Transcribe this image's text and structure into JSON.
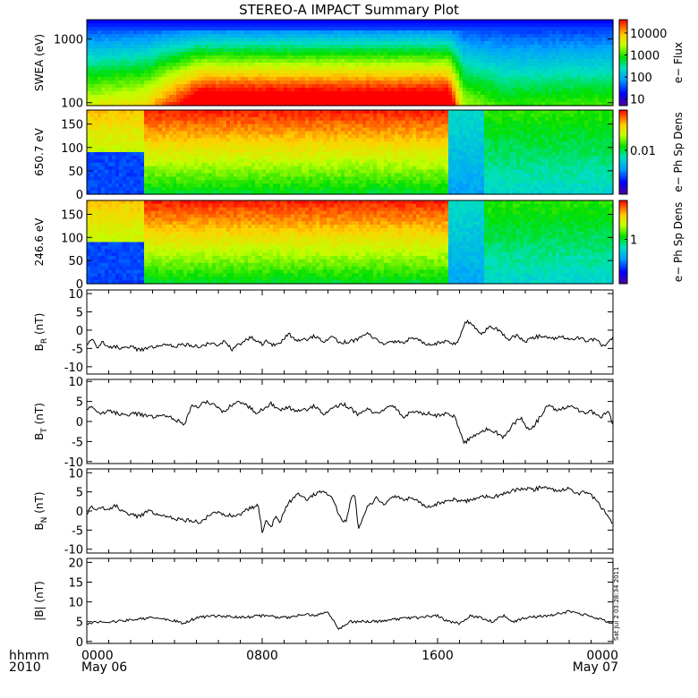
{
  "title": "STEREO-A IMPACT Summary Plot",
  "footer": {
    "time_format": "hhmm",
    "year": "2010"
  },
  "stamp": "Sat Jul  2 03:28:34 2011",
  "x_axis": {
    "tick_labels": [
      "0000",
      "0800",
      "1600",
      "0000"
    ],
    "date_labels": [
      "May 06",
      "",
      "",
      "May 07"
    ],
    "hours": [
      0,
      8,
      16,
      24
    ]
  },
  "chart_data": [
    {
      "type": "heatmap",
      "id": "swea",
      "ylabel": "SWEA (eV)",
      "y_scale": "log",
      "ylim": [
        90,
        2000
      ],
      "yticks": [
        100,
        1000
      ],
      "ytick_labels": [
        "100",
        "1000"
      ],
      "colorbar": {
        "label": "e− Flux",
        "scale": "log",
        "range": [
          5,
          40000
        ],
        "ticks": [
          10,
          100,
          1000,
          10000
        ],
        "tick_labels": [
          "10",
          "100",
          "1000",
          "10000"
        ]
      },
      "time_profile_hours": [
        0,
        2.6,
        5.2,
        16.5,
        17.2,
        19,
        24
      ],
      "time_profile_level": [
        0.55,
        0.6,
        0.95,
        0.95,
        0.5,
        0.4,
        0.42
      ]
    },
    {
      "type": "heatmap",
      "id": "pad650",
      "ylabel": "650.7 eV",
      "ylim": [
        0,
        180
      ],
      "yticks": [
        0,
        50,
        100,
        150
      ],
      "ytick_labels": [
        "0",
        "50",
        "100",
        "150"
      ],
      "colorbar": {
        "label": "e− Ph Sp Dens",
        "scale": "log",
        "tick_labels": [
          "0.01"
        ]
      },
      "regions": [
        {
          "hours": [
            0,
            2.6
          ],
          "state": "low_pitch_depleted"
        },
        {
          "hours": [
            2.6,
            16.5
          ],
          "state": "high_pitch_enhanced"
        },
        {
          "hours": [
            16.5,
            18.2
          ],
          "state": "depleted"
        },
        {
          "hours": [
            18.2,
            24
          ],
          "state": "mixed"
        }
      ]
    },
    {
      "type": "heatmap",
      "id": "pad246",
      "ylabel": "246.6 eV",
      "ylim": [
        0,
        180
      ],
      "yticks": [
        0,
        50,
        100,
        150
      ],
      "ytick_labels": [
        "0",
        "50",
        "100",
        "150"
      ],
      "colorbar": {
        "label": "e− Ph Sp Dens",
        "scale": "log",
        "tick_labels": [
          "1"
        ]
      },
      "regions": [
        {
          "hours": [
            0,
            2.6
          ],
          "state": "low_pitch_depleted"
        },
        {
          "hours": [
            2.6,
            16.5
          ],
          "state": "high_pitch_enhanced"
        },
        {
          "hours": [
            16.5,
            18.2
          ],
          "state": "depleted"
        },
        {
          "hours": [
            18.2,
            24
          ],
          "state": "mixed"
        }
      ]
    },
    {
      "type": "line",
      "id": "br",
      "ylabel_main": "B",
      "ylabel_sub": "R",
      "ylabel_unit": " (nT)",
      "ylim": [
        -12,
        11
      ],
      "yticks": [
        -10,
        -5,
        0,
        5,
        10
      ],
      "ytick_labels": [
        "-10",
        "-5",
        "0",
        "5",
        "10"
      ],
      "x": [
        0,
        0.3,
        0.5,
        0.7,
        1,
        1.3,
        1.6,
        2,
        2.4,
        2.8,
        3.2,
        3.6,
        4,
        4.4,
        4.8,
        5.2,
        5.6,
        5.8,
        6,
        6.3,
        6.6,
        6.9,
        7.2,
        7.5,
        7.8,
        8,
        8.2,
        8.4,
        8.8,
        9.2,
        9.6,
        10,
        10.4,
        10.8,
        11.2,
        11.6,
        12,
        12.4,
        12.8,
        13.2,
        13.6,
        14,
        14.4,
        14.8,
        15.2,
        15.6,
        16,
        16.4,
        16.8,
        17,
        17.3,
        17.6,
        18,
        18.4,
        18.8,
        19.2,
        19.6,
        20,
        20.4,
        20.8,
        21.2,
        21.6,
        22,
        22.4,
        22.8,
        23.2,
        23.6,
        24
      ],
      "values": [
        -4,
        -2.5,
        -5,
        -3,
        -5,
        -4.5,
        -5,
        -4.5,
        -5.5,
        -5,
        -4.5,
        -4,
        -4.5,
        -4,
        -4.2,
        -4.5,
        -3.5,
        -4,
        -4.5,
        -2.5,
        -5.5,
        -4,
        -3,
        -2,
        -3,
        -4,
        -2.5,
        -4,
        -3.5,
        -1,
        -3,
        -2.5,
        -1.5,
        -3,
        -2,
        -3.5,
        -3,
        -2.5,
        -1,
        -2.5,
        -4,
        -3,
        -3.5,
        -2,
        -3,
        -4,
        -3.5,
        -3,
        -4,
        -2,
        2.5,
        1.5,
        -1,
        1,
        0,
        -2.5,
        -1.5,
        -3,
        -2,
        -1.5,
        -2.5,
        -1.5,
        -2.5,
        -2,
        -3,
        -2.5,
        -4.5,
        -2
      ],
      "color": "#000000"
    },
    {
      "type": "line",
      "id": "bt",
      "ylabel_main": "B",
      "ylabel_sub": "T",
      "ylabel_unit": " (nT)",
      "ylim": [
        -10.5,
        10.5
      ],
      "yticks": [
        -10,
        -5,
        0,
        5,
        10
      ],
      "ytick_labels": [
        "-10",
        "-5",
        "0",
        "5",
        "10"
      ],
      "x": [
        0,
        0.3,
        0.6,
        1,
        1.4,
        1.8,
        2.2,
        2.6,
        3,
        3.4,
        3.8,
        4.2,
        4.4,
        4.6,
        4.8,
        5,
        5.4,
        5.8,
        6.2,
        6.6,
        7,
        7.4,
        7.8,
        8,
        8.4,
        8.8,
        9.2,
        9.6,
        10,
        10.4,
        10.8,
        11.2,
        11.6,
        12,
        12.4,
        12.8,
        13.2,
        13.6,
        14,
        14.4,
        14.8,
        15.2,
        15.6,
        16,
        16.4,
        16.8,
        17,
        17.2,
        17.4,
        17.8,
        18.2,
        18.6,
        19,
        19.4,
        19.8,
        20.2,
        20.6,
        21,
        21.4,
        21.8,
        22.2,
        22.6,
        23,
        23.4,
        23.8,
        24
      ],
      "values": [
        3,
        3.5,
        2,
        2.5,
        2,
        1.5,
        2,
        1.5,
        1,
        1.5,
        1,
        0,
        -1,
        1,
        4.5,
        3.5,
        5,
        4,
        2.5,
        4,
        5,
        3.5,
        2,
        3,
        4.5,
        3,
        3.5,
        2.5,
        3,
        4,
        2,
        3,
        4.5,
        3.5,
        1.5,
        3,
        2,
        3,
        4,
        1,
        2.5,
        2,
        2,
        1.5,
        2,
        1,
        -2,
        -5.5,
        -4.5,
        -3,
        -2,
        -2.5,
        -4,
        -1,
        1,
        -2.5,
        0.5,
        4,
        3,
        3.5,
        4,
        2,
        2.5,
        1,
        2.5,
        -1
      ],
      "color": "#000000"
    },
    {
      "type": "line",
      "id": "bn",
      "ylabel_main": "B",
      "ylabel_sub": "N",
      "ylabel_unit": " (nT)",
      "ylim": [
        -11,
        11
      ],
      "yticks": [
        -10,
        -5,
        0,
        5,
        10
      ],
      "ytick_labels": [
        "-10",
        "-5",
        "0",
        "5",
        "10"
      ],
      "x": [
        0,
        0.2,
        0.4,
        0.7,
        1,
        1.3,
        1.6,
        2,
        2.4,
        2.8,
        3.2,
        3.6,
        4,
        4.4,
        4.8,
        5.2,
        5.6,
        6,
        6.4,
        6.8,
        7.2,
        7.6,
        7.8,
        8,
        8.2,
        8.4,
        8.6,
        8.8,
        9,
        9.2,
        9.6,
        10,
        10.4,
        10.8,
        11.2,
        11.6,
        11.8,
        12,
        12.2,
        12.4,
        12.6,
        12.8,
        13,
        13.2,
        13.6,
        14,
        14.4,
        14.8,
        15.2,
        15.6,
        16,
        16.4,
        16.8,
        17.2,
        17.6,
        18,
        18.4,
        18.8,
        19.2,
        19.6,
        20,
        20.4,
        20.8,
        21.2,
        21.6,
        22,
        22.4,
        22.8,
        23.2,
        23.6,
        24
      ],
      "values": [
        -1,
        1,
        0.5,
        1,
        0,
        1.5,
        0,
        -1,
        -1.5,
        0,
        -1,
        -1.5,
        -2,
        -2.5,
        -2.5,
        -3,
        -1,
        -0.5,
        -1,
        -1.5,
        0,
        1,
        2,
        -5.5,
        -2,
        -4.5,
        -1,
        -3,
        0,
        2,
        4.5,
        3,
        4.5,
        5.5,
        3,
        -2,
        -3,
        2,
        5,
        -5,
        -2,
        1,
        2,
        3.5,
        1.5,
        4,
        3,
        3.5,
        2,
        1,
        2,
        2.5,
        3,
        2.5,
        3,
        4,
        3.5,
        4,
        5,
        5.5,
        6,
        5.5,
        6.5,
        5.5,
        5.5,
        6,
        4.5,
        5,
        3,
        0,
        -3.5
      ],
      "color": "#000000"
    },
    {
      "type": "line",
      "id": "btot",
      "ylabel_main": "|B| (nT)",
      "ylim": [
        -0.5,
        21
      ],
      "yticks": [
        0,
        5,
        10,
        15,
        20
      ],
      "ytick_labels": [
        "0",
        "5",
        "10",
        "15",
        "20"
      ],
      "x": [
        0,
        0.5,
        1,
        2,
        3,
        4,
        4.4,
        5,
        6,
        7,
        8,
        9,
        10,
        10.5,
        11,
        11.5,
        12,
        13,
        14,
        15,
        16,
        16.5,
        17,
        17.5,
        18,
        18.5,
        19,
        19.5,
        20,
        21,
        22,
        23,
        24
      ],
      "values": [
        4.5,
        5,
        4.8,
        5.5,
        6,
        5.2,
        4.5,
        6,
        6.5,
        6,
        6.5,
        6,
        7,
        6.5,
        7.5,
        3,
        5,
        5,
        5.5,
        6,
        6.5,
        5,
        4.5,
        6.5,
        6,
        5,
        6.5,
        5,
        6,
        6.5,
        7.5,
        6.5,
        4.5
      ],
      "color": "#000000"
    }
  ]
}
